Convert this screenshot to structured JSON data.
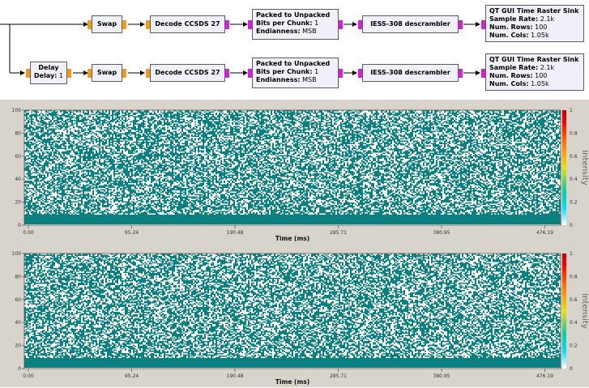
{
  "flowgraph": {
    "row1": {
      "swap": "Swap",
      "decode": "Decode CCSDS 27",
      "packed": {
        "title": "Packed to Unpacked",
        "bits_label": "Bits per Chunk:",
        "bits_value": "1",
        "endian_label": "Endianness:",
        "endian_value": "MSB"
      },
      "descrambler": "IESS-308 descrambler",
      "sink": {
        "title": "QT GUI Time Raster Sink",
        "rate_label": "Sample Rate:",
        "rate_value": "2.1k",
        "rows_label": "Num. Rows:",
        "rows_value": "100",
        "cols_label": "Num. Cols:",
        "cols_value": "1.05k"
      }
    },
    "row2": {
      "delay": {
        "title": "Delay",
        "label": "Delay:",
        "value": "1"
      },
      "swap": "Swap",
      "decode": "Decode CCSDS 27",
      "packed": {
        "title": "Packed to Unpacked",
        "bits_label": "Bits per Chunk:",
        "bits_value": "1",
        "endian_label": "Endianness:",
        "endian_value": "MSB"
      },
      "descrambler": "IESS-308 descrambler",
      "sink": {
        "title": "QT GUI Time Raster Sink",
        "rate_label": "Sample Rate:",
        "rate_value": "2.1k",
        "rows_label": "Num. Rows:",
        "rows_value": "100",
        "cols_label": "Num. Cols:",
        "cols_value": "1.05k"
      }
    }
  },
  "plots": [
    {
      "y_ticks": [
        "0",
        "20",
        "40",
        "60",
        "80",
        "100"
      ],
      "x_ticks": [
        "0.00",
        "95.24",
        "190.48",
        "285.71",
        "380.95",
        "476.19"
      ],
      "xlabel": "Time (ms)",
      "colorbar_ticks": [
        "0",
        "0.2",
        "0.4",
        "0.6",
        "0.8",
        "1"
      ],
      "colorbar_label": "Intensity"
    },
    {
      "y_ticks": [
        "0",
        "20",
        "40",
        "60",
        "80",
        "100"
      ],
      "x_ticks": [
        "0.00",
        "95.24",
        "190.48",
        "285.71",
        "380.95",
        "476.19"
      ],
      "xlabel": "Time (ms)",
      "colorbar_ticks": [
        "0",
        "0.2",
        "0.4",
        "0.6",
        "0.8",
        "1"
      ],
      "colorbar_label": "Intensity"
    }
  ],
  "colors": {
    "raster": "#0c8080",
    "background": "#d8d4cc",
    "port_orange": "#f39a1a",
    "port_magenta": "#d020d8",
    "block_fill": "#f0f0f8"
  }
}
